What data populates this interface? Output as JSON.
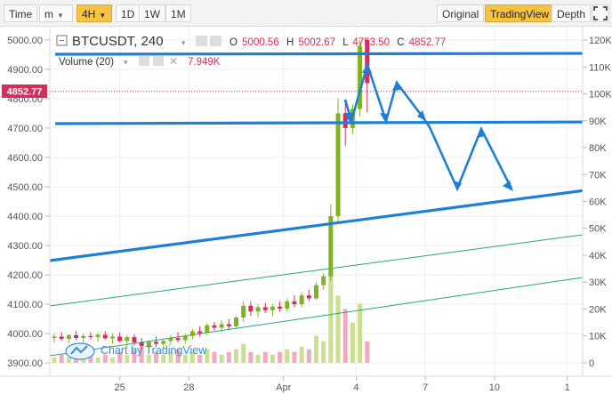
{
  "toolbar": {
    "time_label": "Time",
    "minute_label": "m",
    "interval_4h_label": "4H",
    "interval_1d_label": "1D",
    "interval_1w_label": "1W",
    "interval_1m_label": "1M",
    "original_label": "Original",
    "tradingview_label": "TradingView",
    "depth_label": "Depth",
    "fullscreen_icon": "fullscreen-icon"
  },
  "legend": {
    "symbol": "BTCUSDT, 240",
    "o_label": "O",
    "o_value": "5000.56",
    "h_label": "H",
    "h_value": "5002.67",
    "l_label": "L",
    "l_value": "4753.50",
    "c_label": "C",
    "c_value": "4852.77",
    "volume_label": "Volume (20)",
    "volume_value": "7.949K"
  },
  "current_price_tag": "4852.77",
  "watermark": "Chart by TradingView",
  "colors": {
    "up": "#7fb321",
    "down": "#d32f5c",
    "drawing_blue": "#1e7fd6",
    "channel_green": "#2aa37f",
    "active_button": "#f7c344"
  },
  "chart_data": {
    "type": "candlestick",
    "price_axis": {
      "ticks": [
        3900,
        4000,
        4100,
        4200,
        4300,
        4400,
        4500,
        4600,
        4700,
        4800,
        4900,
        5000
      ],
      "tick_labels": [
        "3900.00",
        "4000.00",
        "4100.00",
        "4200.00",
        "4300.00",
        "4400.00",
        "4500.00",
        "4600.00",
        "4700.00",
        "4800.00",
        "4900.00",
        "5000.00"
      ],
      "range": [
        3855,
        5045
      ]
    },
    "volume_axis": {
      "ticks": [
        0,
        10,
        20,
        30,
        40,
        50,
        60,
        70,
        80,
        90,
        100,
        110,
        120
      ],
      "tick_labels": [
        "0",
        "10K",
        "20K",
        "30K",
        "40K",
        "50K",
        "60K",
        "70K",
        "80K",
        "90K",
        "100K",
        "110K",
        "120K"
      ],
      "range": [
        -5,
        125
      ],
      "unit": "K"
    },
    "x_axis": {
      "range": [
        0,
        72
      ],
      "ticks": [
        {
          "x": 9,
          "label": "25"
        },
        {
          "x": 18.5,
          "label": "28"
        },
        {
          "x": 31.5,
          "label": "Apr"
        },
        {
          "x": 41.5,
          "label": "4"
        },
        {
          "x": 51,
          "label": "7"
        },
        {
          "x": 60.5,
          "label": "10"
        },
        {
          "x": 70.5,
          "label": "1"
        }
      ]
    },
    "candles": [
      {
        "x": 0,
        "o": 3985,
        "h": 4000,
        "l": 3970,
        "c": 3990,
        "v": 2
      },
      {
        "x": 1,
        "o": 3990,
        "h": 4005,
        "l": 3975,
        "c": 3982,
        "v": 3
      },
      {
        "x": 2,
        "o": 3982,
        "h": 3998,
        "l": 3968,
        "c": 3995,
        "v": 2
      },
      {
        "x": 3,
        "o": 3995,
        "h": 4008,
        "l": 3978,
        "c": 3985,
        "v": 4
      },
      {
        "x": 4,
        "o": 3985,
        "h": 4000,
        "l": 3970,
        "c": 3992,
        "v": 2
      },
      {
        "x": 5,
        "o": 3992,
        "h": 4005,
        "l": 3980,
        "c": 3988,
        "v": 3
      },
      {
        "x": 6,
        "o": 3988,
        "h": 4002,
        "l": 3972,
        "c": 3996,
        "v": 2
      },
      {
        "x": 7,
        "o": 3996,
        "h": 4008,
        "l": 3980,
        "c": 3984,
        "v": 3
      },
      {
        "x": 8,
        "o": 3984,
        "h": 4000,
        "l": 3965,
        "c": 3990,
        "v": 2
      },
      {
        "x": 9,
        "o": 3990,
        "h": 4004,
        "l": 3970,
        "c": 3975,
        "v": 4
      },
      {
        "x": 10,
        "o": 3975,
        "h": 3995,
        "l": 3955,
        "c": 3988,
        "v": 3
      },
      {
        "x": 11,
        "o": 3988,
        "h": 3998,
        "l": 3960,
        "c": 3970,
        "v": 5
      },
      {
        "x": 12,
        "o": 3970,
        "h": 3985,
        "l": 3945,
        "c": 3958,
        "v": 6
      },
      {
        "x": 13,
        "o": 3958,
        "h": 3978,
        "l": 3940,
        "c": 3972,
        "v": 3
      },
      {
        "x": 14,
        "o": 3972,
        "h": 3990,
        "l": 3955,
        "c": 3965,
        "v": 4
      },
      {
        "x": 15,
        "o": 3965,
        "h": 3980,
        "l": 3945,
        "c": 3975,
        "v": 3
      },
      {
        "x": 16,
        "o": 3975,
        "h": 3995,
        "l": 3960,
        "c": 3985,
        "v": 4
      },
      {
        "x": 17,
        "o": 3985,
        "h": 4005,
        "l": 3970,
        "c": 3978,
        "v": 5
      },
      {
        "x": 18,
        "o": 3978,
        "h": 4000,
        "l": 3965,
        "c": 3992,
        "v": 3
      },
      {
        "x": 19,
        "o": 3992,
        "h": 4015,
        "l": 3980,
        "c": 4008,
        "v": 4
      },
      {
        "x": 20,
        "o": 4008,
        "h": 4025,
        "l": 3990,
        "c": 4002,
        "v": 3
      },
      {
        "x": 21,
        "o": 4002,
        "h": 4035,
        "l": 3995,
        "c": 4028,
        "v": 5
      },
      {
        "x": 22,
        "o": 4028,
        "h": 4040,
        "l": 4010,
        "c": 4020,
        "v": 4
      },
      {
        "x": 23,
        "o": 4020,
        "h": 4045,
        "l": 4005,
        "c": 4032,
        "v": 3
      },
      {
        "x": 24,
        "o": 4032,
        "h": 4050,
        "l": 4015,
        "c": 4025,
        "v": 4
      },
      {
        "x": 25,
        "o": 4025,
        "h": 4060,
        "l": 4015,
        "c": 4055,
        "v": 5
      },
      {
        "x": 26,
        "o": 4055,
        "h": 4110,
        "l": 4040,
        "c": 4095,
        "v": 7
      },
      {
        "x": 27,
        "o": 4095,
        "h": 4110,
        "l": 4060,
        "c": 4075,
        "v": 4
      },
      {
        "x": 28,
        "o": 4075,
        "h": 4100,
        "l": 4055,
        "c": 4090,
        "v": 3
      },
      {
        "x": 29,
        "o": 4090,
        "h": 4105,
        "l": 4070,
        "c": 4080,
        "v": 4
      },
      {
        "x": 30,
        "o": 4080,
        "h": 4100,
        "l": 4060,
        "c": 4092,
        "v": 3
      },
      {
        "x": 31,
        "o": 4092,
        "h": 4110,
        "l": 4075,
        "c": 4085,
        "v": 4
      },
      {
        "x": 32,
        "o": 4085,
        "h": 4120,
        "l": 4075,
        "c": 4110,
        "v": 5
      },
      {
        "x": 33,
        "o": 4110,
        "h": 4130,
        "l": 4090,
        "c": 4100,
        "v": 4
      },
      {
        "x": 34,
        "o": 4100,
        "h": 4140,
        "l": 4090,
        "c": 4130,
        "v": 6
      },
      {
        "x": 35,
        "o": 4130,
        "h": 4150,
        "l": 4110,
        "c": 4120,
        "v": 5
      },
      {
        "x": 36,
        "o": 4120,
        "h": 4175,
        "l": 4115,
        "c": 4165,
        "v": 10
      },
      {
        "x": 37,
        "o": 4165,
        "h": 4205,
        "l": 4150,
        "c": 4195,
        "v": 8
      },
      {
        "x": 38,
        "o": 4195,
        "h": 4440,
        "l": 4180,
        "c": 4400,
        "v": 35
      },
      {
        "x": 39,
        "o": 4400,
        "h": 4800,
        "l": 4380,
        "c": 4750,
        "v": 25
      },
      {
        "x": 40,
        "o": 4750,
        "h": 4790,
        "l": 4640,
        "c": 4700,
        "v": 20
      },
      {
        "x": 41,
        "o": 4700,
        "h": 4780,
        "l": 4680,
        "c": 4765,
        "v": 15
      },
      {
        "x": 42,
        "o": 4765,
        "h": 5000,
        "l": 4740,
        "c": 4980,
        "v": 22
      },
      {
        "x": 43,
        "o": 5000.56,
        "h": 5002.67,
        "l": 4753.5,
        "c": 4852.77,
        "v": 7.949
      }
    ]
  }
}
